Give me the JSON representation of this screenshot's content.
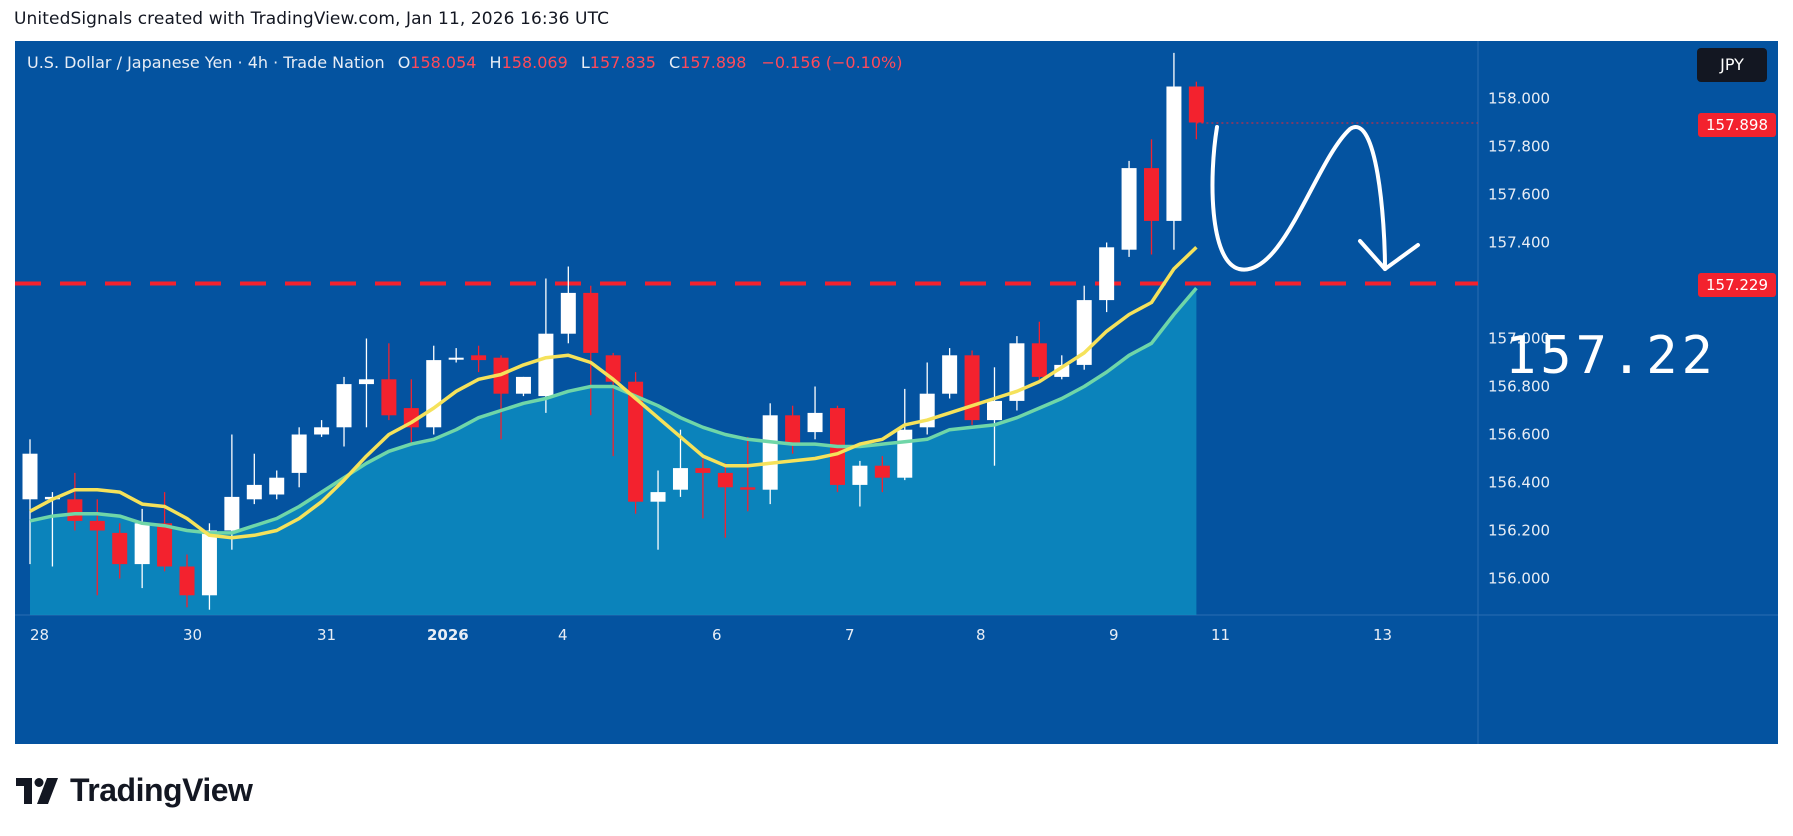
{
  "caption": "UnitedSignals created with TradingView.com, Jan 11, 2026 16:36 UTC",
  "legend": {
    "symbol": "U.S. Dollar / Japanese Yen · 4h · Trade Nation",
    "o_label": "O",
    "o_value": "158.054",
    "h_label": "H",
    "h_value": "158.069",
    "l_label": "L",
    "l_value": "157.835",
    "c_label": "C",
    "c_value": "157.898",
    "change": "−0.156 (−0.10%)"
  },
  "currency_button": "JPY",
  "last_price_tag": "157.898",
  "level_tag": "157.229",
  "annotation_text": "157.22",
  "brand": {
    "name": "TradingView"
  },
  "colors": {
    "background": "#0453a0",
    "up_candle": "#ffffff",
    "down_candle": "#f3222e",
    "fast_ma": "#f5e25b",
    "slow_ma": "#6fd6a8",
    "area_fill": "#0d8cc0",
    "level_line": "#f3222e"
  },
  "chart_data": {
    "type": "candlestick",
    "title": "U.S. Dollar / Japanese Yen · 4h · Trade Nation",
    "y_ticks": [
      "158.000",
      "157.800",
      "157.600",
      "157.400",
      "157.000",
      "156.800",
      "156.600",
      "156.400",
      "156.200",
      "156.000"
    ],
    "ylim": [
      155.85,
      158.25
    ],
    "x_ticks": [
      "28",
      "30",
      "31",
      "2026",
      "4",
      "6",
      "7",
      "8",
      "9",
      "11",
      "13"
    ],
    "candles": [
      {
        "o": 156.33,
        "h": 156.58,
        "l": 156.06,
        "c": 156.52
      },
      {
        "o": 156.33,
        "h": 156.36,
        "l": 156.05,
        "c": 156.34
      },
      {
        "o": 156.33,
        "h": 156.44,
        "l": 156.2,
        "c": 156.24
      },
      {
        "o": 156.24,
        "h": 156.33,
        "l": 155.93,
        "c": 156.2
      },
      {
        "o": 156.19,
        "h": 156.23,
        "l": 156.0,
        "c": 156.06
      },
      {
        "o": 156.06,
        "h": 156.29,
        "l": 155.96,
        "c": 156.23
      },
      {
        "o": 156.23,
        "h": 156.36,
        "l": 156.03,
        "c": 156.05
      },
      {
        "o": 156.05,
        "h": 156.1,
        "l": 155.88,
        "c": 155.93
      },
      {
        "o": 155.93,
        "h": 156.23,
        "l": 155.87,
        "c": 156.2
      },
      {
        "o": 156.2,
        "h": 156.6,
        "l": 156.12,
        "c": 156.34
      },
      {
        "o": 156.33,
        "h": 156.52,
        "l": 156.31,
        "c": 156.39
      },
      {
        "o": 156.35,
        "h": 156.45,
        "l": 156.33,
        "c": 156.42
      },
      {
        "o": 156.44,
        "h": 156.63,
        "l": 156.38,
        "c": 156.6
      },
      {
        "o": 156.6,
        "h": 156.66,
        "l": 156.59,
        "c": 156.63
      },
      {
        "o": 156.63,
        "h": 156.84,
        "l": 156.55,
        "c": 156.81
      },
      {
        "o": 156.81,
        "h": 157.0,
        "l": 156.63,
        "c": 156.83
      },
      {
        "o": 156.83,
        "h": 156.98,
        "l": 156.66,
        "c": 156.68
      },
      {
        "o": 156.71,
        "h": 156.83,
        "l": 156.56,
        "c": 156.63
      },
      {
        "o": 156.63,
        "h": 156.97,
        "l": 156.6,
        "c": 156.91
      },
      {
        "o": 156.92,
        "h": 156.96,
        "l": 156.9,
        "c": 156.92
      },
      {
        "o": 156.93,
        "h": 156.97,
        "l": 156.86,
        "c": 156.91
      },
      {
        "o": 156.92,
        "h": 156.93,
        "l": 156.58,
        "c": 156.77
      },
      {
        "o": 156.77,
        "h": 156.84,
        "l": 156.76,
        "c": 156.84
      },
      {
        "o": 156.76,
        "h": 157.25,
        "l": 156.69,
        "c": 157.02
      },
      {
        "o": 157.02,
        "h": 157.3,
        "l": 156.98,
        "c": 157.19
      },
      {
        "o": 157.19,
        "h": 157.22,
        "l": 156.68,
        "c": 156.94
      },
      {
        "o": 156.93,
        "h": 156.94,
        "l": 156.51,
        "c": 156.82
      },
      {
        "o": 156.82,
        "h": 156.86,
        "l": 156.27,
        "c": 156.32
      },
      {
        "o": 156.32,
        "h": 156.45,
        "l": 156.12,
        "c": 156.36
      },
      {
        "o": 156.37,
        "h": 156.62,
        "l": 156.34,
        "c": 156.46
      },
      {
        "o": 156.46,
        "h": 156.5,
        "l": 156.25,
        "c": 156.44
      },
      {
        "o": 156.44,
        "h": 156.48,
        "l": 156.17,
        "c": 156.38
      },
      {
        "o": 156.38,
        "h": 156.59,
        "l": 156.28,
        "c": 156.37
      },
      {
        "o": 156.37,
        "h": 156.73,
        "l": 156.31,
        "c": 156.68
      },
      {
        "o": 156.68,
        "h": 156.72,
        "l": 156.52,
        "c": 156.56
      },
      {
        "o": 156.61,
        "h": 156.8,
        "l": 156.58,
        "c": 156.69
      },
      {
        "o": 156.71,
        "h": 156.72,
        "l": 156.36,
        "c": 156.39
      },
      {
        "o": 156.39,
        "h": 156.49,
        "l": 156.3,
        "c": 156.47
      },
      {
        "o": 156.47,
        "h": 156.51,
        "l": 156.36,
        "c": 156.42
      },
      {
        "o": 156.42,
        "h": 156.79,
        "l": 156.41,
        "c": 156.62
      },
      {
        "o": 156.63,
        "h": 156.9,
        "l": 156.6,
        "c": 156.77
      },
      {
        "o": 156.77,
        "h": 156.96,
        "l": 156.75,
        "c": 156.93
      },
      {
        "o": 156.93,
        "h": 156.95,
        "l": 156.64,
        "c": 156.66
      },
      {
        "o": 156.66,
        "h": 156.88,
        "l": 156.47,
        "c": 156.74
      },
      {
        "o": 156.74,
        "h": 157.01,
        "l": 156.7,
        "c": 156.98
      },
      {
        "o": 156.98,
        "h": 157.07,
        "l": 156.82,
        "c": 156.84
      },
      {
        "o": 156.84,
        "h": 156.93,
        "l": 156.83,
        "c": 156.89
      },
      {
        "o": 156.89,
        "h": 157.22,
        "l": 156.87,
        "c": 157.16
      },
      {
        "o": 157.16,
        "h": 157.4,
        "l": 157.11,
        "c": 157.38
      },
      {
        "o": 157.37,
        "h": 157.74,
        "l": 157.34,
        "c": 157.71
      },
      {
        "o": 157.71,
        "h": 157.83,
        "l": 157.35,
        "c": 157.49
      },
      {
        "o": 157.49,
        "h": 158.19,
        "l": 157.37,
        "c": 158.05
      },
      {
        "o": 158.05,
        "h": 158.07,
        "l": 157.83,
        "c": 157.9
      }
    ],
    "fast_ma": [
      156.28,
      156.33,
      156.37,
      156.37,
      156.36,
      156.31,
      156.3,
      156.25,
      156.18,
      156.17,
      156.18,
      156.2,
      156.25,
      156.32,
      156.41,
      156.51,
      156.6,
      156.65,
      156.71,
      156.78,
      156.83,
      156.85,
      156.89,
      156.92,
      156.93,
      156.9,
      156.83,
      156.75,
      156.67,
      156.59,
      156.51,
      156.47,
      156.47,
      156.48,
      156.49,
      156.5,
      156.52,
      156.56,
      156.58,
      156.64,
      156.66,
      156.69,
      156.72,
      156.75,
      156.78,
      156.82,
      156.88,
      156.94,
      157.03,
      157.1,
      157.15,
      157.29,
      157.38
    ],
    "slow_ma": [
      156.24,
      156.26,
      156.27,
      156.27,
      156.26,
      156.23,
      156.22,
      156.2,
      156.19,
      156.19,
      156.22,
      156.25,
      156.3,
      156.36,
      156.42,
      156.48,
      156.53,
      156.56,
      156.58,
      156.62,
      156.67,
      156.7,
      156.73,
      156.75,
      156.78,
      156.8,
      156.8,
      156.76,
      156.72,
      156.67,
      156.63,
      156.6,
      156.58,
      156.57,
      156.56,
      156.56,
      156.55,
      156.55,
      156.56,
      156.57,
      156.58,
      156.62,
      156.63,
      156.64,
      156.67,
      156.71,
      156.75,
      156.8,
      156.86,
      156.93,
      156.98,
      157.1,
      157.21
    ],
    "horizontal_level": 157.229,
    "last_price": 157.898
  }
}
